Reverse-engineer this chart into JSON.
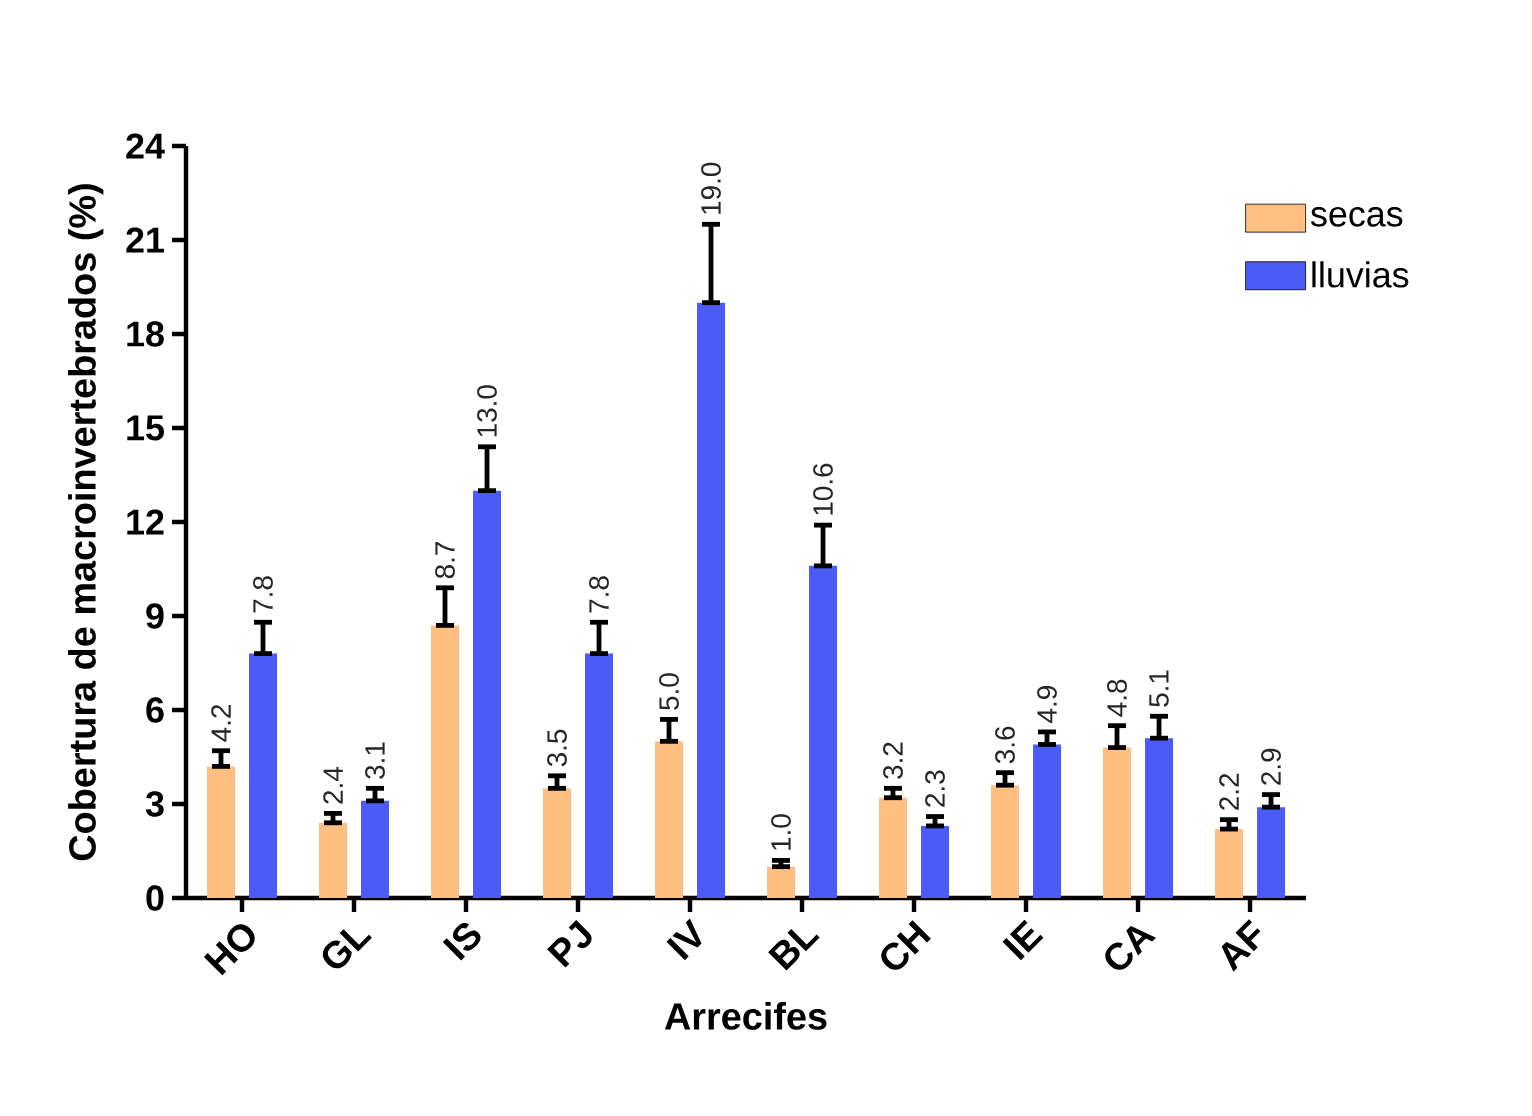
{
  "chart_data": {
    "type": "bar",
    "xlabel": "Arrecifes",
    "ylabel": "Cobertura de macroinvertebrados (%)",
    "categories": [
      "HO",
      "GL",
      "IS",
      "PJ",
      "IV",
      "BL",
      "CH",
      "IE",
      "CA",
      "AF"
    ],
    "series": [
      {
        "name": "secas",
        "color": "#ffbf80",
        "values": [
          4.2,
          2.4,
          8.7,
          3.5,
          5.0,
          1.0,
          3.2,
          3.6,
          4.8,
          2.2
        ],
        "value_labels": [
          "4.2",
          "2.4",
          "8.7",
          "3.5",
          "5.0",
          "1.0",
          "3.2",
          "3.6",
          "4.8",
          "2.2"
        ],
        "errors": [
          [
            4.2,
            4.7
          ],
          [
            2.4,
            2.7
          ],
          [
            8.7,
            9.9
          ],
          [
            3.5,
            3.9
          ],
          [
            5.0,
            5.7
          ],
          [
            1.0,
            1.2
          ],
          [
            3.2,
            3.5
          ],
          [
            3.6,
            4.0
          ],
          [
            4.8,
            5.5
          ],
          [
            2.2,
            2.5
          ]
        ]
      },
      {
        "name": "lluvias",
        "color": "#4a5cf5",
        "values": [
          7.8,
          3.1,
          13.0,
          7.8,
          19.0,
          10.6,
          2.3,
          4.9,
          5.1,
          2.9
        ],
        "value_labels": [
          "7.8",
          "3.1",
          "13.0",
          "7.8",
          "19.0",
          "10.6",
          "2.3",
          "4.9",
          "5.1",
          "2.9"
        ],
        "errors": [
          [
            7.8,
            8.8
          ],
          [
            3.1,
            3.5
          ],
          [
            13.0,
            14.4
          ],
          [
            7.8,
            8.8
          ],
          [
            19.0,
            21.5
          ],
          [
            10.6,
            11.9
          ],
          [
            2.3,
            2.6
          ],
          [
            4.9,
            5.3
          ],
          [
            5.1,
            5.8
          ],
          [
            2.9,
            3.3
          ]
        ]
      }
    ],
    "ylim": [
      0,
      24
    ],
    "yticks": [
      0,
      3,
      6,
      9,
      12,
      15,
      18,
      21,
      24
    ],
    "legend": "top right",
    "grid": false
  }
}
